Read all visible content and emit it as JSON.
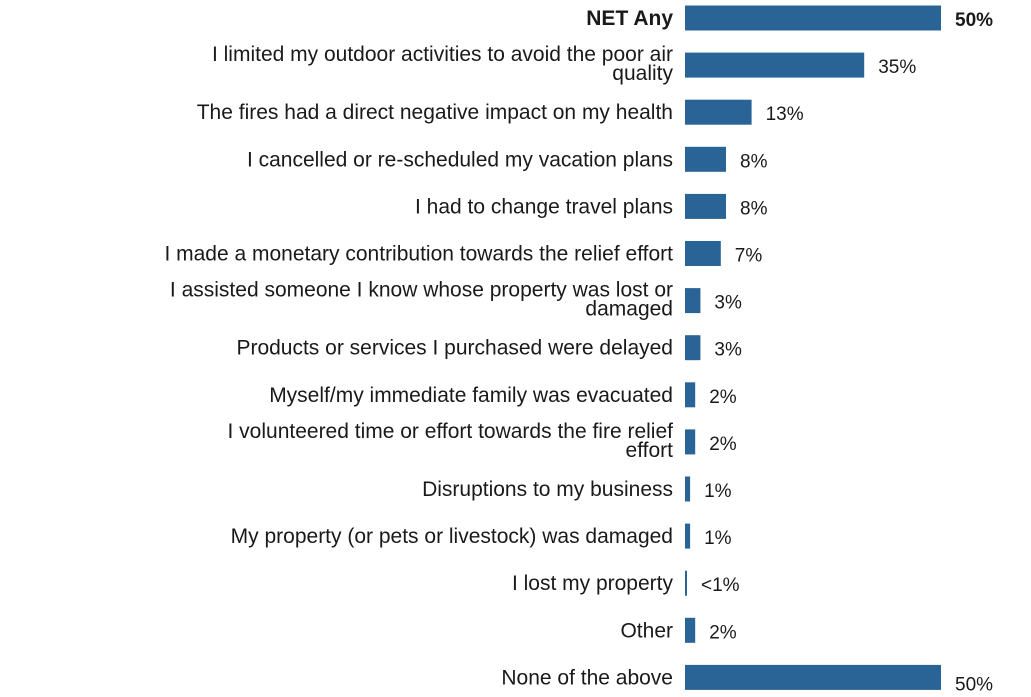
{
  "chart_data": {
    "type": "bar",
    "orientation": "horizontal",
    "title": "",
    "xlabel": "",
    "ylabel": "",
    "grid": false,
    "legend": "none",
    "bar_color": "#2a6496",
    "categories": [
      "NET Any",
      "I limited my outdoor activities to avoid the poor air quality",
      "The fires had a direct negative impact on my health",
      "I cancelled or re-scheduled my vacation plans",
      "I had to change travel plans",
      "I made a monetary contribution towards the relief effort",
      "I assisted someone I know whose property was lost or damaged",
      "Products or services I purchased were delayed",
      "Myself/my immediate family was evacuated",
      "I volunteered time or effort towards the fire relief effort",
      "Disruptions to my business",
      "My property (or pets or livestock) was damaged",
      "I lost my property",
      "Other",
      "None of the above"
    ],
    "values": [
      50,
      35,
      13,
      8,
      8,
      7,
      3,
      3,
      2,
      2,
      1,
      1,
      0.4,
      2,
      50
    ],
    "value_labels": [
      "50%",
      "35%",
      "13%",
      "8%",
      "8%",
      "7%",
      "3%",
      "3%",
      "2%",
      "2%",
      "1%",
      "1%",
      "<1%",
      "2%",
      "50%"
    ],
    "bold": [
      true,
      false,
      false,
      false,
      false,
      false,
      false,
      false,
      false,
      false,
      false,
      false,
      false,
      false,
      false
    ],
    "xlim": [
      0,
      50
    ]
  }
}
